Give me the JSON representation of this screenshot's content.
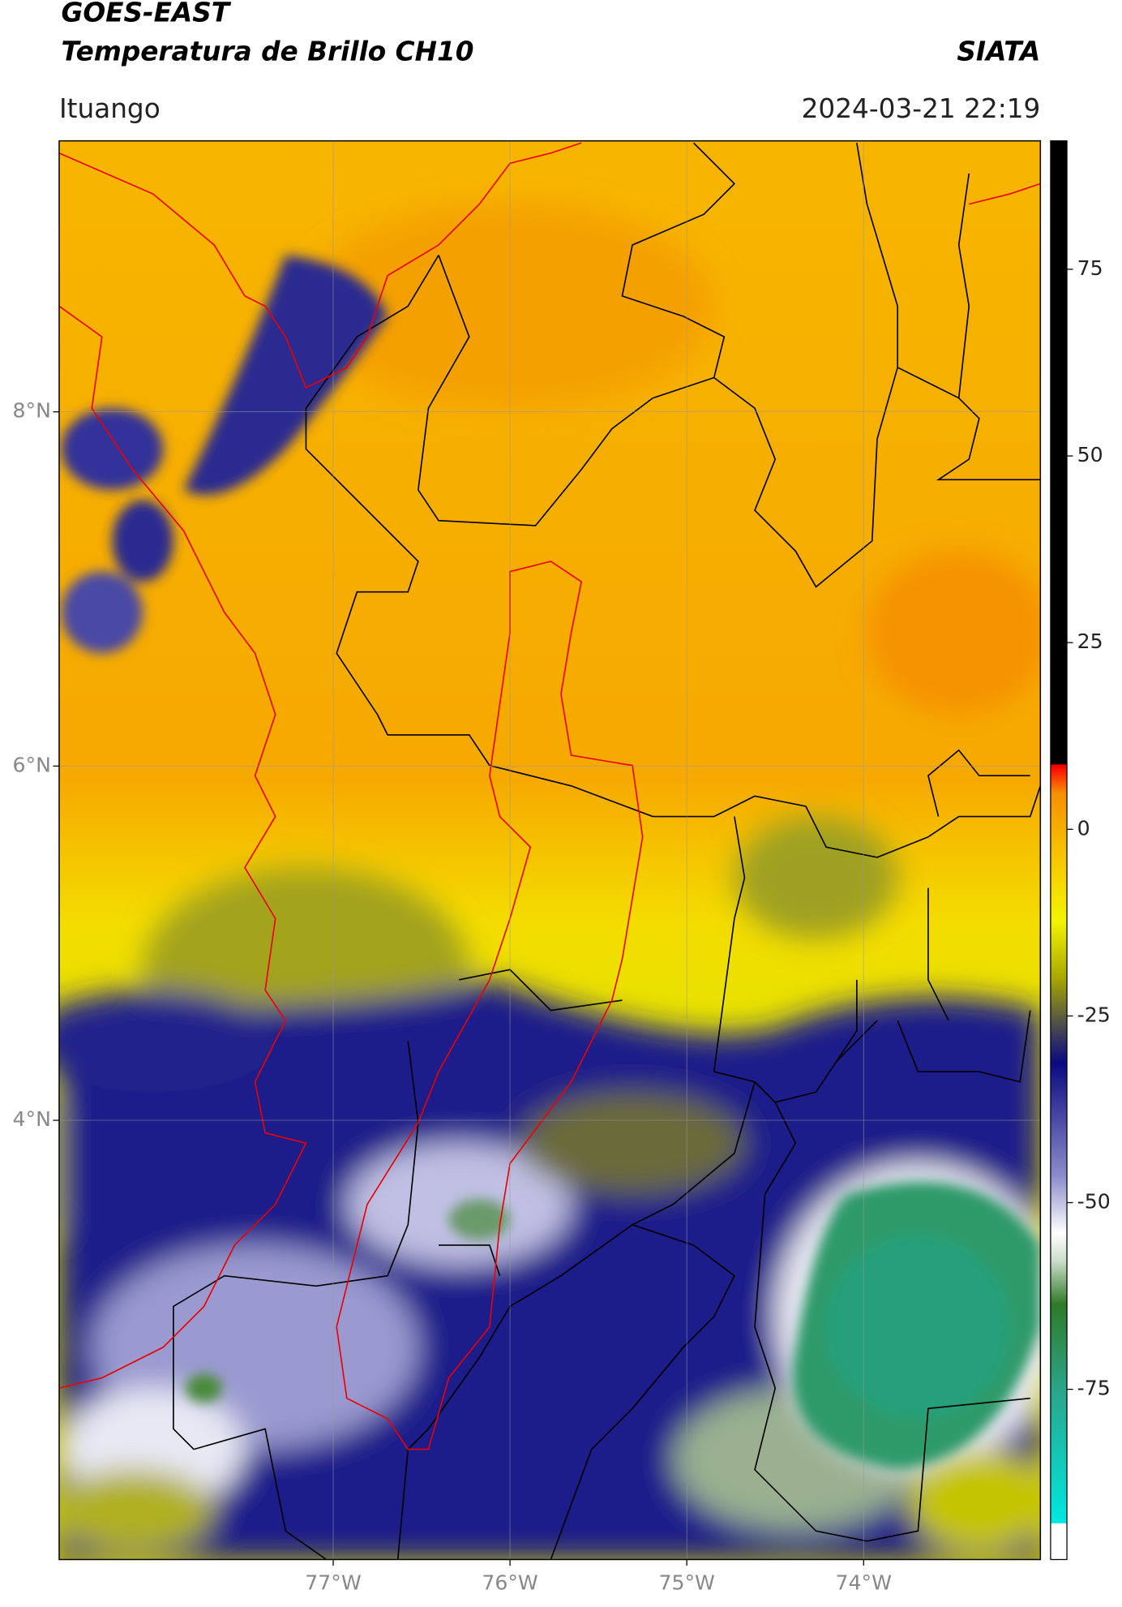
{
  "header": {
    "title_line1": "GOES-EAST",
    "title_line2": "Temperatura de Brillo CH10",
    "source": "SIATA",
    "location": "Ituango",
    "timestamp": "2024-03-21 22:19"
  },
  "map": {
    "xlim": [
      -78.55,
      -73.0
    ],
    "ylim": [
      1.52,
      9.53
    ],
    "xticks": [
      {
        "value": -77,
        "label": "77°W"
      },
      {
        "value": -76,
        "label": "76°W"
      },
      {
        "value": -75,
        "label": "75°W"
      },
      {
        "value": -74,
        "label": "74°W"
      }
    ],
    "yticks": [
      {
        "value": 8,
        "label": "8°N"
      },
      {
        "value": 6,
        "label": "6°N"
      },
      {
        "value": 4,
        "label": "4°N"
      }
    ],
    "grid": true
  },
  "colorbar": {
    "lim": [
      -97.8,
      92.2
    ],
    "ticks": [
      75,
      50,
      25,
      0,
      -25,
      -50,
      -75
    ]
  }
}
